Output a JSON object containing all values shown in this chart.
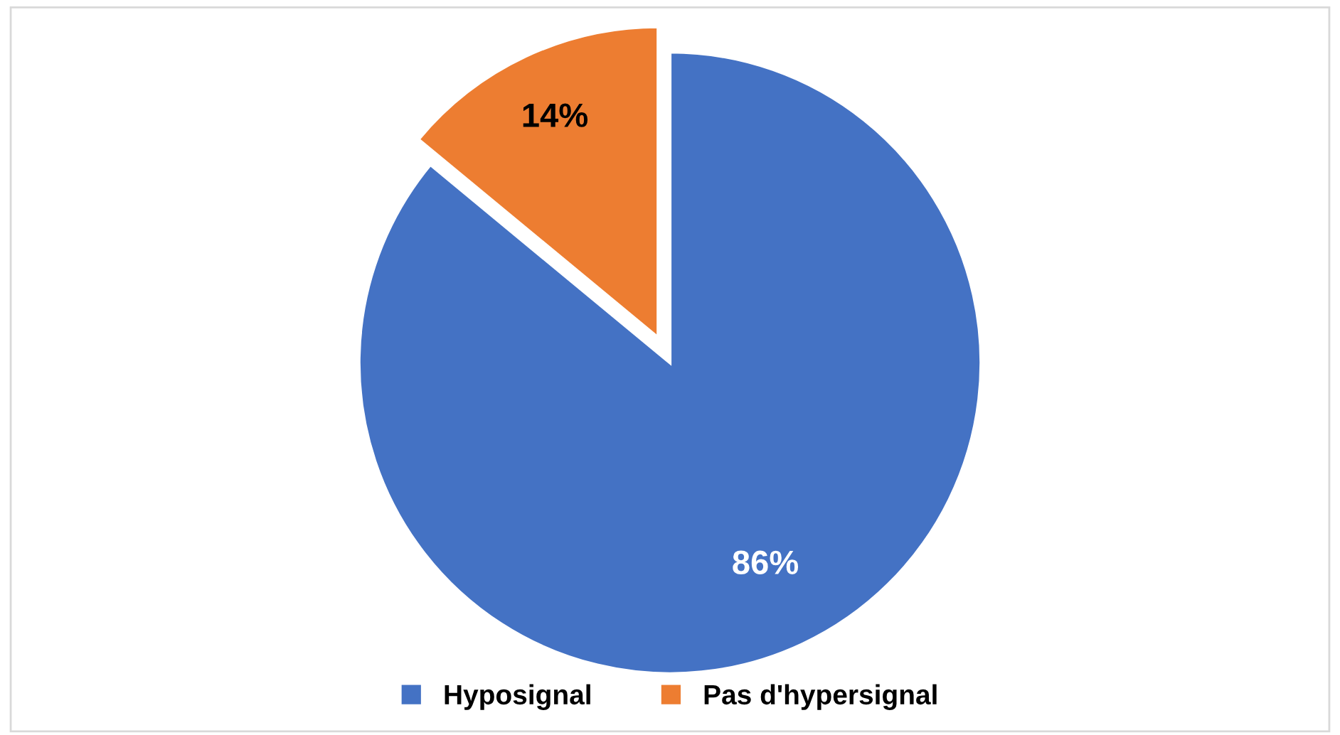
{
  "chart_data": {
    "type": "pie",
    "categories": [
      "Hyposignal",
      "Pas d'hypersignal"
    ],
    "values": [
      86,
      14
    ],
    "colors": [
      "#4472c4",
      "#ed7d31"
    ],
    "value_labels": [
      "86%",
      "14%"
    ],
    "legend": "bottom"
  }
}
